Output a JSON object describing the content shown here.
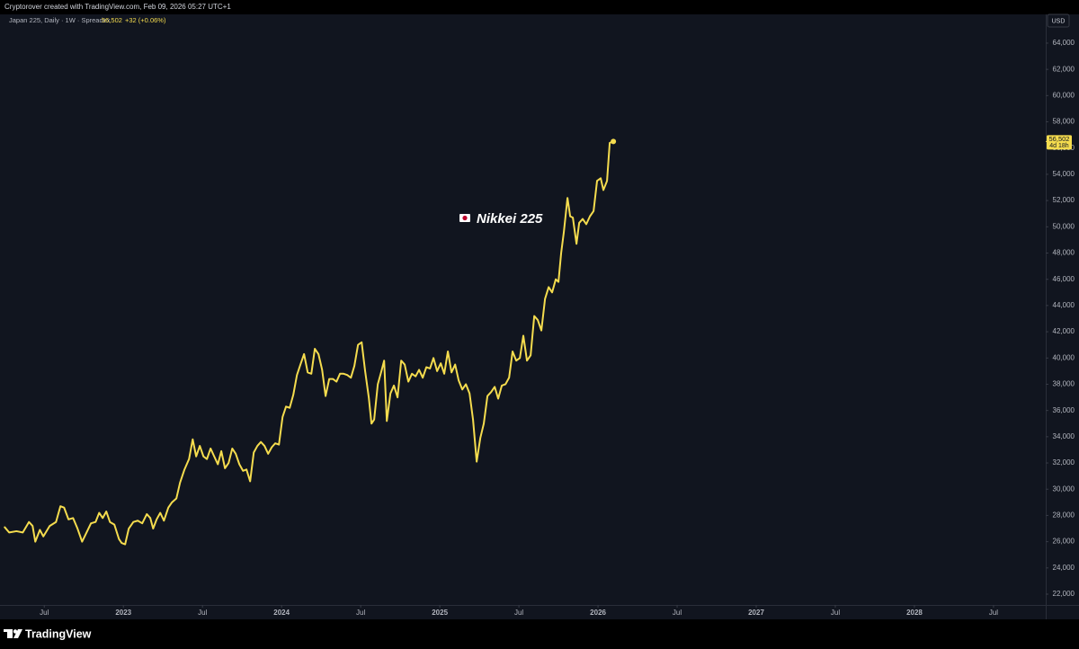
{
  "header": {
    "credit": "Cryptorover created with TradingView.com, Feb 09, 2026 05:27 UTC+1",
    "symbol": "Japan 225, Daily · 1W · Spreadex",
    "price": "56,502",
    "change": "+32 (+0.06%)"
  },
  "footer": {
    "brand": "TradingView"
  },
  "chart_data": {
    "type": "line",
    "annotation": "Nikkei 225",
    "y_unit": "USD",
    "price_tag": {
      "price": "56,502",
      "countdown": "4d 18h"
    },
    "grid": false,
    "xlim": [
      2022.22,
      2028.83
    ],
    "ylim": [
      20150,
      66190
    ],
    "xticks": [
      {
        "value": 2022.5,
        "label": "Jul"
      },
      {
        "value": 2023,
        "label": "2023"
      },
      {
        "value": 2023.5,
        "label": "Jul"
      },
      {
        "value": 2024,
        "label": "2024"
      },
      {
        "value": 2024.5,
        "label": "Jul"
      },
      {
        "value": 2025,
        "label": "2025"
      },
      {
        "value": 2025.5,
        "label": "Jul"
      },
      {
        "value": 2026,
        "label": "2026"
      },
      {
        "value": 2026.5,
        "label": "Jul"
      },
      {
        "value": 2027,
        "label": "2027"
      },
      {
        "value": 2027.5,
        "label": "Jul"
      },
      {
        "value": 2028,
        "label": "2028"
      },
      {
        "value": 2028.5,
        "label": "Jul"
      }
    ],
    "yticks": [
      {
        "value": 22000,
        "label": "22,000"
      },
      {
        "value": 24000,
        "label": "24,000"
      },
      {
        "value": 26000,
        "label": "26,000"
      },
      {
        "value": 28000,
        "label": "28,000"
      },
      {
        "value": 30000,
        "label": "30,000"
      },
      {
        "value": 32000,
        "label": "32,000"
      },
      {
        "value": 34000,
        "label": "34,000"
      },
      {
        "value": 36000,
        "label": "36,000"
      },
      {
        "value": 38000,
        "label": "38,000"
      },
      {
        "value": 40000,
        "label": "40,000"
      },
      {
        "value": 42000,
        "label": "42,000"
      },
      {
        "value": 44000,
        "label": "44,000"
      },
      {
        "value": 46000,
        "label": "46,000"
      },
      {
        "value": 48000,
        "label": "48,000"
      },
      {
        "value": 50000,
        "label": "50,000"
      },
      {
        "value": 52000,
        "label": "52,000"
      },
      {
        "value": 54000,
        "label": "54,000"
      },
      {
        "value": 56000,
        "label": "56,000"
      },
      {
        "value": 58000,
        "label": "58,000"
      },
      {
        "value": 60000,
        "label": "60,000"
      },
      {
        "value": 62000,
        "label": "62,000"
      },
      {
        "value": 64000,
        "label": "64,000"
      }
    ],
    "x": [
      2022.25,
      2022.278,
      2022.324,
      2022.364,
      2022.403,
      2022.426,
      2022.443,
      2022.472,
      2022.494,
      2022.534,
      2022.574,
      2022.602,
      2022.625,
      2022.653,
      2022.682,
      2022.71,
      2022.739,
      2022.767,
      2022.795,
      2022.824,
      2022.847,
      2022.869,
      2022.892,
      2022.915,
      2022.943,
      2022.972,
      2022.989,
      2023.011,
      2023.034,
      2023.063,
      2023.091,
      2023.119,
      2023.148,
      2023.17,
      2023.188,
      2023.21,
      2023.233,
      2023.256,
      2023.284,
      2023.307,
      2023.335,
      2023.358,
      2023.386,
      2023.415,
      2023.438,
      2023.46,
      2023.483,
      2023.506,
      2023.528,
      2023.551,
      2023.574,
      2023.597,
      2023.619,
      2023.642,
      2023.665,
      2023.688,
      2023.71,
      2023.733,
      2023.756,
      2023.778,
      2023.801,
      2023.824,
      2023.847,
      2023.869,
      2023.892,
      2023.915,
      2023.938,
      2023.96,
      2023.983,
      2024.006,
      2024.028,
      2024.051,
      2024.074,
      2024.097,
      2024.119,
      2024.142,
      2024.165,
      2024.188,
      2024.21,
      2024.233,
      2024.256,
      2024.278,
      2024.301,
      2024.324,
      2024.347,
      2024.369,
      2024.392,
      2024.415,
      2024.438,
      2024.46,
      2024.483,
      2024.506,
      2024.528,
      2024.551,
      2024.568,
      2024.585,
      2024.608,
      2024.631,
      2024.648,
      2024.665,
      2024.688,
      2024.71,
      2024.733,
      2024.756,
      2024.778,
      2024.801,
      2024.824,
      2024.847,
      2024.869,
      2024.892,
      2024.915,
      2024.938,
      2024.96,
      2024.983,
      2025.006,
      2025.028,
      2025.051,
      2025.074,
      2025.097,
      2025.119,
      2025.142,
      2025.165,
      2025.188,
      2025.21,
      2025.233,
      2025.256,
      2025.278,
      2025.301,
      2025.324,
      2025.347,
      2025.369,
      2025.392,
      2025.415,
      2025.438,
      2025.46,
      2025.483,
      2025.506,
      2025.528,
      2025.551,
      2025.574,
      2025.597,
      2025.619,
      2025.642,
      2025.665,
      2025.688,
      2025.71,
      2025.733,
      2025.75,
      2025.767,
      2025.784,
      2025.807,
      2025.824,
      2025.841,
      2025.864,
      2025.881,
      2025.903,
      2025.926,
      2025.949,
      2025.972,
      2025.994,
      2026.017,
      2026.034,
      2026.057,
      2026.074,
      2026.097
    ],
    "series": [
      {
        "name": "Japan 225",
        "color": "#f5dc4e",
        "values": [
          27100,
          26700,
          26800,
          26700,
          27500,
          27200,
          26000,
          26900,
          26400,
          27200,
          27500,
          28700,
          28600,
          27700,
          27800,
          27000,
          26000,
          26700,
          27400,
          27500,
          28200,
          27800,
          28300,
          27500,
          27300,
          26200,
          25900,
          25800,
          27000,
          27500,
          27600,
          27400,
          28100,
          27800,
          27000,
          27700,
          28200,
          27600,
          28600,
          29000,
          29300,
          30500,
          31500,
          32300,
          33800,
          32500,
          33300,
          32500,
          32300,
          33100,
          32500,
          31900,
          32900,
          31600,
          32000,
          33100,
          32700,
          31900,
          31400,
          31500,
          30600,
          32800,
          33300,
          33600,
          33300,
          32700,
          33200,
          33500,
          33400,
          35500,
          36300,
          36200,
          37200,
          38700,
          39500,
          40300,
          38900,
          38800,
          40700,
          40300,
          39100,
          37100,
          38400,
          38400,
          38200,
          38800,
          38800,
          38700,
          38500,
          39400,
          41000,
          41200,
          39000,
          37000,
          35000,
          35300,
          38000,
          39000,
          39800,
          35200,
          37300,
          37900,
          37000,
          39800,
          39500,
          38200,
          38800,
          38600,
          39100,
          38500,
          39300,
          39200,
          40000,
          39000,
          39600,
          38800,
          40500,
          38900,
          39500,
          38300,
          37600,
          38000,
          37300,
          35300,
          32100,
          33900,
          35000,
          37100,
          37400,
          37800,
          36900,
          37900,
          38000,
          38500,
          40500,
          39800,
          40000,
          41700,
          39800,
          40200,
          43200,
          42900,
          42100,
          44500,
          45400,
          45000,
          46000,
          45800,
          48000,
          49600,
          52200,
          50800,
          50700,
          48700,
          50300,
          50600,
          50200,
          50800,
          51200,
          53500,
          53700,
          52800,
          53500,
          56400,
          56502
        ]
      }
    ]
  }
}
